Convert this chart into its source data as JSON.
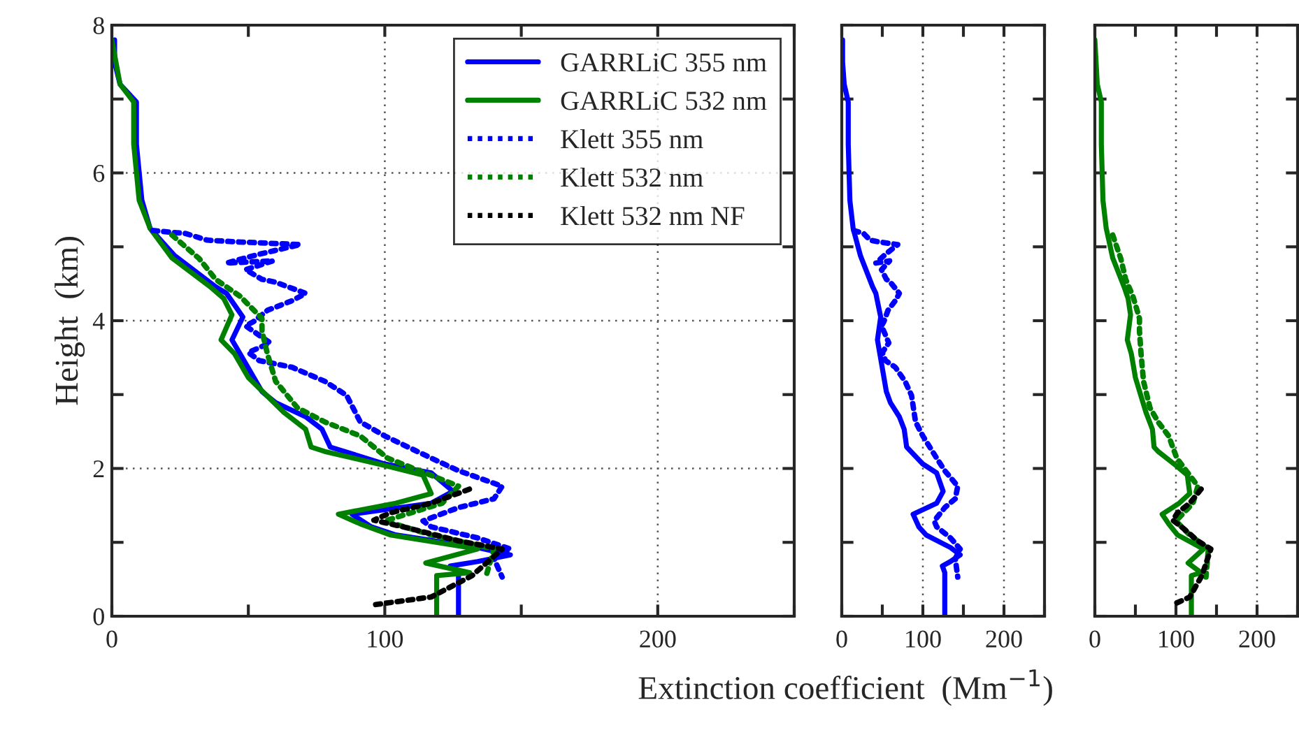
{
  "chart_data": [
    {
      "type": "line",
      "ylabel": "Height  (km)",
      "xlim": [
        0,
        250
      ],
      "ylim": [
        0,
        8
      ],
      "xticks": [
        0,
        {
          "value": 50,
          "label": null
        },
        100,
        {
          "value": 150,
          "label": null
        },
        200,
        {
          "value": 250,
          "label": null
        }
      ],
      "yticks": [
        0,
        {
          "value": 1,
          "label": null
        },
        2,
        {
          "value": 3,
          "label": null
        },
        4,
        {
          "value": 5,
          "label": null
        },
        6,
        {
          "value": 7,
          "label": null
        },
        8
      ],
      "grid": true,
      "legend": "top right",
      "series": [
        {
          "name": "GARRLiC 355 nm",
          "color": "#0000ff",
          "line_style": "solid",
          "x": [
            1,
            1,
            3,
            9,
            9,
            11,
            14,
            23,
            38,
            42,
            48,
            44,
            47,
            55,
            60,
            71,
            77,
            80,
            100,
            117,
            125,
            117,
            88,
            95,
            104,
            134,
            146,
            134,
            124,
            127,
            127
          ],
          "values": [
            7.8,
            7.5,
            7.2,
            6.96,
            6.39,
            5.63,
            5.25,
            4.88,
            4.46,
            4.37,
            4.05,
            3.74,
            3.55,
            3.04,
            2.89,
            2.7,
            2.53,
            2.29,
            2.06,
            1.94,
            1.69,
            1.53,
            1.38,
            1.21,
            1.1,
            0.93,
            0.83,
            0.74,
            0.68,
            0.59,
            0
          ]
        },
        {
          "name": "GARRLiC 532 nm",
          "color": "#008000",
          "line_style": "solid",
          "x": [
            0,
            3,
            8,
            8,
            10,
            14,
            22,
            36,
            41,
            44,
            40,
            45,
            50,
            63,
            71,
            73,
            78,
            100,
            114,
            117,
            104,
            83,
            91,
            102,
            134,
            115,
            131,
            119,
            119
          ],
          "values": [
            7.8,
            7.2,
            6.96,
            6.39,
            5.63,
            5.25,
            4.85,
            4.46,
            4.3,
            4.08,
            3.74,
            3.55,
            3.23,
            2.76,
            2.53,
            2.29,
            2.23,
            2.04,
            1.91,
            1.66,
            1.53,
            1.38,
            1.25,
            1.1,
            0.91,
            0.72,
            0.59,
            0.55,
            0
          ]
        },
        {
          "name": "Klett 355 nm",
          "color": "#0000ff",
          "line_style": "dotted",
          "x": [
            15,
            27,
            35,
            44,
            69,
            54,
            42,
            59,
            49,
            55,
            60,
            71,
            66,
            57,
            52,
            49,
            58,
            50,
            54,
            66,
            78,
            86,
            91,
            100,
            117,
            127,
            143,
            140,
            127,
            114,
            117,
            134,
            146,
            140,
            143
          ],
          "values": [
            5.22,
            5.18,
            5.09,
            5.07,
            5.03,
            4.9,
            4.78,
            4.81,
            4.69,
            4.56,
            4.52,
            4.37,
            4.27,
            4.14,
            3.99,
            3.93,
            3.7,
            3.57,
            3.46,
            3.37,
            3.18,
            2.99,
            2.63,
            2.44,
            2.14,
            1.97,
            1.76,
            1.59,
            1.47,
            1.29,
            1.21,
            1.06,
            0.91,
            0.78,
            0.53
          ]
        },
        {
          "name": "Klett 532 nm",
          "color": "#008000",
          "line_style": "dotted",
          "x": [
            22,
            32,
            38,
            47,
            55,
            55,
            57,
            60,
            68,
            78,
            91,
            101,
            127,
            121,
            100,
            117,
            140,
            137
          ],
          "values": [
            5.16,
            4.84,
            4.56,
            4.33,
            4.03,
            3.86,
            3.55,
            3.18,
            2.82,
            2.63,
            2.44,
            2.14,
            1.76,
            1.53,
            1.29,
            1.1,
            0.91,
            0.53
          ]
        },
        {
          "name": "Klett 532 nm NF",
          "color": "#000000",
          "line_style": "dotted",
          "x": [
            131,
            117,
            102,
            96,
            109,
            127,
            143,
            132,
            117,
            95
          ],
          "values": [
            1.72,
            1.53,
            1.4,
            1.3,
            1.19,
            1.02,
            0.91,
            0.55,
            0.26,
            0.15
          ]
        }
      ]
    },
    {
      "type": "line",
      "xlabel": "Extinction coefficient  (Mm$^{−1}$)",
      "xlim": [
        0,
        250
      ],
      "ylim": [
        0,
        8
      ],
      "xticks": [
        0,
        {
          "value": 50,
          "label": null
        },
        100,
        {
          "value": 150,
          "label": null
        },
        200,
        {
          "value": 250,
          "label": null
        }
      ],
      "yticks": [
        {
          "value": 0,
          "label": null
        },
        {
          "value": 1,
          "label": null
        },
        {
          "value": 2,
          "label": null
        },
        {
          "value": 3,
          "label": null
        },
        {
          "value": 4,
          "label": null
        },
        {
          "value": 5,
          "label": null
        },
        {
          "value": 6,
          "label": null
        },
        {
          "value": 7,
          "label": null
        },
        {
          "value": 8,
          "label": null
        }
      ],
      "grid": true,
      "tick_labels": "x",
      "series": [
        {
          "color": "#0000ff",
          "line_style": "solid",
          "x": [
            1,
            1,
            3,
            8,
            8,
            10,
            14,
            23,
            38,
            42,
            48,
            44,
            47,
            55,
            60,
            71,
            77,
            80,
            100,
            117,
            125,
            117,
            88,
            95,
            104,
            134,
            146,
            134,
            124,
            127,
            127
          ],
          "values": [
            7.8,
            7.5,
            7.2,
            6.96,
            6.39,
            5.63,
            5.25,
            4.88,
            4.46,
            4.37,
            4.05,
            3.74,
            3.55,
            3.04,
            2.89,
            2.7,
            2.53,
            2.29,
            2.06,
            1.94,
            1.69,
            1.53,
            1.38,
            1.21,
            1.1,
            0.93,
            0.83,
            0.74,
            0.68,
            0.59,
            0
          ]
        },
        {
          "color": "#0000ff",
          "line_style": "dotted",
          "x": [
            15,
            27,
            35,
            44,
            69,
            54,
            42,
            59,
            49,
            55,
            60,
            71,
            66,
            57,
            52,
            49,
            58,
            50,
            54,
            66,
            78,
            86,
            91,
            100,
            117,
            127,
            143,
            140,
            127,
            114,
            117,
            134,
            146,
            140,
            143
          ],
          "values": [
            5.22,
            5.18,
            5.09,
            5.07,
            5.03,
            4.9,
            4.78,
            4.81,
            4.69,
            4.56,
            4.52,
            4.37,
            4.27,
            4.14,
            3.99,
            3.93,
            3.7,
            3.57,
            3.46,
            3.37,
            3.18,
            2.99,
            2.63,
            2.44,
            2.14,
            1.97,
            1.76,
            1.59,
            1.47,
            1.29,
            1.21,
            1.06,
            0.91,
            0.78,
            0.53
          ]
        }
      ]
    },
    {
      "type": "line",
      "xlim": [
        0,
        250
      ],
      "ylim": [
        0,
        8
      ],
      "xticks": [
        0,
        {
          "value": 50,
          "label": null
        },
        100,
        {
          "value": 150,
          "label": null
        },
        200,
        {
          "value": 250,
          "label": null
        }
      ],
      "yticks": [
        {
          "value": 0,
          "label": null
        },
        {
          "value": 1,
          "label": null
        },
        {
          "value": 2,
          "label": null
        },
        {
          "value": 3,
          "label": null
        },
        {
          "value": 4,
          "label": null
        },
        {
          "value": 5,
          "label": null
        },
        {
          "value": 6,
          "label": null
        },
        {
          "value": 7,
          "label": null
        },
        {
          "value": 8,
          "label": null
        }
      ],
      "grid": true,
      "tick_labels": "x",
      "series": [
        {
          "color": "#008000",
          "line_style": "solid",
          "x": [
            0,
            3,
            8,
            8,
            10,
            14,
            22,
            36,
            41,
            44,
            40,
            45,
            50,
            63,
            71,
            73,
            78,
            100,
            114,
            117,
            104,
            83,
            91,
            102,
            134,
            115,
            131,
            119,
            119
          ],
          "values": [
            7.8,
            7.2,
            6.96,
            6.39,
            5.63,
            5.25,
            4.85,
            4.46,
            4.3,
            4.08,
            3.74,
            3.55,
            3.23,
            2.76,
            2.53,
            2.29,
            2.23,
            2.04,
            1.91,
            1.66,
            1.53,
            1.38,
            1.25,
            1.1,
            0.91,
            0.72,
            0.59,
            0.55,
            0
          ]
        },
        {
          "color": "#008000",
          "line_style": "dotted",
          "x": [
            22,
            32,
            38,
            47,
            55,
            55,
            57,
            60,
            68,
            78,
            91,
            101,
            127,
            121,
            100,
            117,
            140,
            137
          ],
          "values": [
            5.16,
            4.84,
            4.56,
            4.33,
            4.03,
            3.86,
            3.55,
            3.18,
            2.82,
            2.63,
            2.44,
            2.14,
            1.76,
            1.53,
            1.29,
            1.1,
            0.91,
            0.53
          ]
        },
        {
          "color": "#000000",
          "line_style": "dotted",
          "x": [
            131,
            117,
            102,
            96,
            109,
            127,
            143,
            132,
            117,
            95
          ],
          "values": [
            1.72,
            1.53,
            1.4,
            1.3,
            1.19,
            1.02,
            0.91,
            0.55,
            0.26,
            0.15
          ]
        }
      ]
    }
  ]
}
